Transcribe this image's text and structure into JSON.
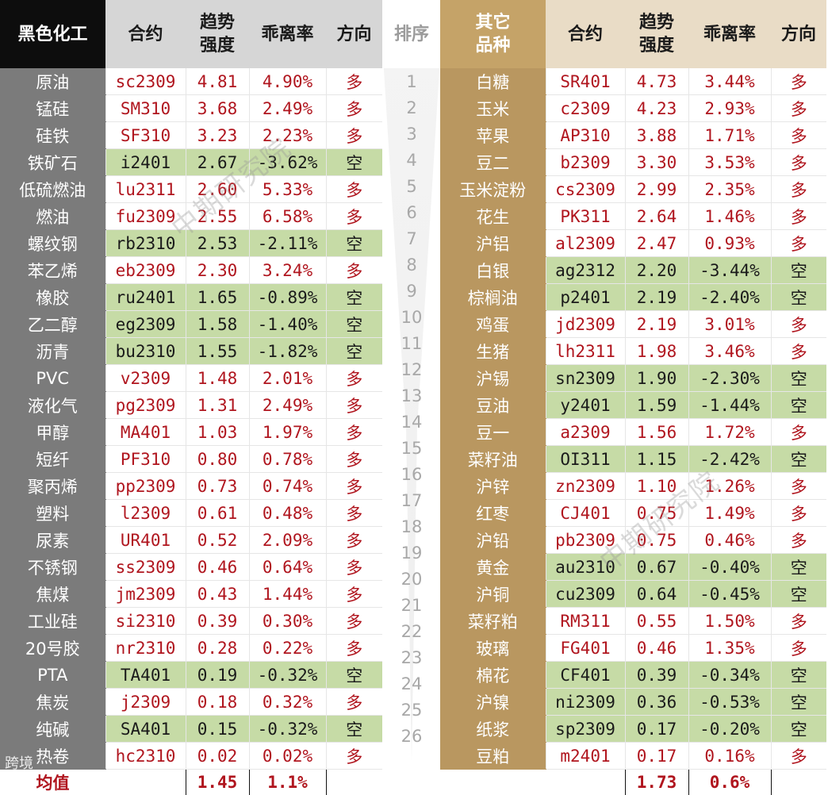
{
  "left_header": {
    "category": "黑色化工",
    "contract": "合约",
    "trend": "趋势\n强度",
    "deviation": "乖离率",
    "direction": "方向"
  },
  "rank_header": "排序",
  "right_header": {
    "category": "其它\n品种",
    "contract": "合约",
    "trend": "趋势\n强度",
    "deviation": "乖离率",
    "direction": "方向"
  },
  "left_rows": [
    {
      "name": "原油",
      "contract": "sc2309",
      "trend": "4.81",
      "dev": "4.90%",
      "dir": "多"
    },
    {
      "name": "锰硅",
      "contract": "SM310",
      "trend": "3.68",
      "dev": "2.49%",
      "dir": "多"
    },
    {
      "name": "硅铁",
      "contract": "SF310",
      "trend": "3.23",
      "dev": "2.23%",
      "dir": "多"
    },
    {
      "name": "铁矿石",
      "contract": "i2401",
      "trend": "2.67",
      "dev": "-3.62%",
      "dir": "空"
    },
    {
      "name": "低硫燃油",
      "contract": "lu2311",
      "trend": "2.60",
      "dev": "5.33%",
      "dir": "多"
    },
    {
      "name": "燃油",
      "contract": "fu2309",
      "trend": "2.55",
      "dev": "6.58%",
      "dir": "多"
    },
    {
      "name": "螺纹钢",
      "contract": "rb2310",
      "trend": "2.53",
      "dev": "-2.11%",
      "dir": "空"
    },
    {
      "name": "苯乙烯",
      "contract": "eb2309",
      "trend": "2.30",
      "dev": "3.24%",
      "dir": "多"
    },
    {
      "name": "橡胶",
      "contract": "ru2401",
      "trend": "1.65",
      "dev": "-0.89%",
      "dir": "空"
    },
    {
      "name": "乙二醇",
      "contract": "eg2309",
      "trend": "1.58",
      "dev": "-1.40%",
      "dir": "空"
    },
    {
      "name": "沥青",
      "contract": "bu2310",
      "trend": "1.55",
      "dev": "-1.82%",
      "dir": "空"
    },
    {
      "name": "PVC",
      "contract": "v2309",
      "trend": "1.48",
      "dev": "2.01%",
      "dir": "多"
    },
    {
      "name": "液化气",
      "contract": "pg2309",
      "trend": "1.31",
      "dev": "2.49%",
      "dir": "多"
    },
    {
      "name": "甲醇",
      "contract": "MA401",
      "trend": "1.03",
      "dev": "1.97%",
      "dir": "多"
    },
    {
      "name": "短纤",
      "contract": "PF310",
      "trend": "0.80",
      "dev": "0.78%",
      "dir": "多"
    },
    {
      "name": "聚丙烯",
      "contract": "pp2309",
      "trend": "0.73",
      "dev": "0.74%",
      "dir": "多"
    },
    {
      "name": "塑料",
      "contract": "l2309",
      "trend": "0.61",
      "dev": "0.48%",
      "dir": "多"
    },
    {
      "name": "尿素",
      "contract": "UR401",
      "trend": "0.52",
      "dev": "2.09%",
      "dir": "多"
    },
    {
      "name": "不锈钢",
      "contract": "ss2309",
      "trend": "0.46",
      "dev": "0.64%",
      "dir": "多"
    },
    {
      "name": "焦煤",
      "contract": "jm2309",
      "trend": "0.43",
      "dev": "1.44%",
      "dir": "多"
    },
    {
      "name": "工业硅",
      "contract": "si2310",
      "trend": "0.39",
      "dev": "0.30%",
      "dir": "多"
    },
    {
      "name": "20号胶",
      "contract": "nr2310",
      "trend": "0.28",
      "dev": "0.22%",
      "dir": "多"
    },
    {
      "name": "PTA",
      "contract": "TA401",
      "trend": "0.19",
      "dev": "-0.32%",
      "dir": "空"
    },
    {
      "name": "焦炭",
      "contract": "j2309",
      "trend": "0.18",
      "dev": "0.32%",
      "dir": "多"
    },
    {
      "name": "纯碱",
      "contract": "SA401",
      "trend": "0.15",
      "dev": "-0.32%",
      "dir": "空"
    },
    {
      "name": "热卷",
      "contract": "hc2310",
      "trend": "0.02",
      "dev": "0.02%",
      "dir": "多"
    }
  ],
  "right_rows": [
    {
      "name": "白糖",
      "contract": "SR401",
      "trend": "4.73",
      "dev": "3.44%",
      "dir": "多"
    },
    {
      "name": "玉米",
      "contract": "c2309",
      "trend": "4.23",
      "dev": "2.93%",
      "dir": "多"
    },
    {
      "name": "苹果",
      "contract": "AP310",
      "trend": "3.88",
      "dev": "1.71%",
      "dir": "多"
    },
    {
      "name": "豆二",
      "contract": "b2309",
      "trend": "3.30",
      "dev": "3.53%",
      "dir": "多"
    },
    {
      "name": "玉米淀粉",
      "contract": "cs2309",
      "trend": "2.99",
      "dev": "2.35%",
      "dir": "多"
    },
    {
      "name": "花生",
      "contract": "PK311",
      "trend": "2.64",
      "dev": "1.46%",
      "dir": "多"
    },
    {
      "name": "沪铝",
      "contract": "al2309",
      "trend": "2.47",
      "dev": "0.93%",
      "dir": "多"
    },
    {
      "name": "白银",
      "contract": "ag2312",
      "trend": "2.20",
      "dev": "-3.44%",
      "dir": "空"
    },
    {
      "name": "棕榈油",
      "contract": "p2401",
      "trend": "2.19",
      "dev": "-2.40%",
      "dir": "空"
    },
    {
      "name": "鸡蛋",
      "contract": "jd2309",
      "trend": "2.19",
      "dev": "3.01%",
      "dir": "多"
    },
    {
      "name": "生猪",
      "contract": "lh2311",
      "trend": "1.98",
      "dev": "3.46%",
      "dir": "多"
    },
    {
      "name": "沪锡",
      "contract": "sn2309",
      "trend": "1.90",
      "dev": "-2.30%",
      "dir": "空"
    },
    {
      "name": "豆油",
      "contract": "y2401",
      "trend": "1.59",
      "dev": "-1.44%",
      "dir": "空"
    },
    {
      "name": "豆一",
      "contract": "a2309",
      "trend": "1.56",
      "dev": "1.72%",
      "dir": "多"
    },
    {
      "name": "菜籽油",
      "contract": "OI311",
      "trend": "1.15",
      "dev": "-2.42%",
      "dir": "空"
    },
    {
      "name": "沪锌",
      "contract": "zn2309",
      "trend": "1.10",
      "dev": "1.26%",
      "dir": "多"
    },
    {
      "name": "红枣",
      "contract": "CJ401",
      "trend": "0.75",
      "dev": "1.49%",
      "dir": "多"
    },
    {
      "name": "沪铅",
      "contract": "pb2309",
      "trend": "0.75",
      "dev": "0.46%",
      "dir": "多"
    },
    {
      "name": "黄金",
      "contract": "au2310",
      "trend": "0.67",
      "dev": "-0.40%",
      "dir": "空"
    },
    {
      "name": "沪铜",
      "contract": "cu2309",
      "trend": "0.64",
      "dev": "-0.45%",
      "dir": "空"
    },
    {
      "name": "菜籽粕",
      "contract": "RM311",
      "trend": "0.55",
      "dev": "1.50%",
      "dir": "多"
    },
    {
      "name": "玻璃",
      "contract": "FG401",
      "trend": "0.46",
      "dev": "1.35%",
      "dir": "多"
    },
    {
      "name": "棉花",
      "contract": "CF401",
      "trend": "0.39",
      "dev": "-0.34%",
      "dir": "空"
    },
    {
      "name": "沪镍",
      "contract": "ni2309",
      "trend": "0.36",
      "dev": "-0.53%",
      "dir": "空"
    },
    {
      "name": "纸浆",
      "contract": "sp2309",
      "trend": "0.17",
      "dev": "-0.20%",
      "dir": "空"
    },
    {
      "name": "豆粕",
      "contract": "m2401",
      "trend": "0.17",
      "dev": "0.16%",
      "dir": "多"
    }
  ],
  "ranks": [
    "1",
    "2",
    "3",
    "4",
    "5",
    "6",
    "7",
    "8",
    "9",
    "10",
    "11",
    "12",
    "13",
    "14",
    "15",
    "16",
    "17",
    "18",
    "19",
    "20",
    "21",
    "22",
    "23",
    "24",
    "25",
    "26"
  ],
  "average": {
    "label": "均值",
    "left_trend": "1.45",
    "left_dev": "1.1%",
    "right_trend": "1.73",
    "right_dev": "0.6%"
  },
  "watermark": "中期研究院",
  "logo_text": "跨境",
  "colors": {
    "short_highlight": "#c6dba6",
    "long_text": "#b0151e",
    "left_category": "#7b7b7b",
    "right_category": "#b99760"
  }
}
